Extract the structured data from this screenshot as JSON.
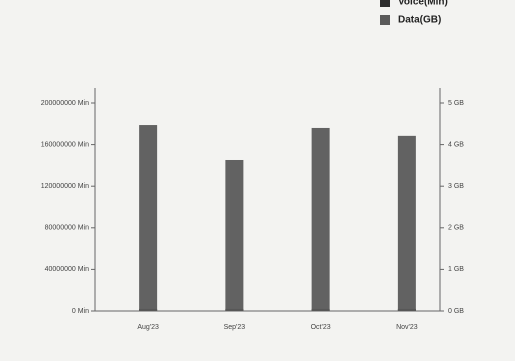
{
  "chart_data": {
    "type": "bar",
    "categories": [
      "Aug'23",
      "Sep'23",
      "Oct'23",
      "Nov'23"
    ],
    "series": [
      {
        "name": "Voice(Min)",
        "color": "#2e2e2e",
        "axis": "y",
        "values": [
          2000000,
          2000000,
          2000000,
          2000000
        ]
      },
      {
        "name": "Data(GB)",
        "color": "#5a5a5a",
        "axis": "y2",
        "values": [
          4.47,
          3.63,
          4.4,
          4.21
        ]
      }
    ],
    "ylim": [
      0,
      200000000
    ],
    "yticks": [
      {
        "value": 0,
        "label": "0 Min"
      },
      {
        "value": 40000000,
        "label": "40000000 Min"
      },
      {
        "value": 80000000,
        "label": "80000000 Min"
      },
      {
        "value": 120000000,
        "label": "120000000 Min"
      },
      {
        "value": 160000000,
        "label": "160000000 Min"
      },
      {
        "value": 200000000,
        "label": "200000000 Min"
      }
    ],
    "y2lim": [
      0,
      5
    ],
    "y2ticks": [
      {
        "value": 0,
        "label": "0 GB"
      },
      {
        "value": 1,
        "label": "1 GB"
      },
      {
        "value": 2,
        "label": "2 GB"
      },
      {
        "value": 3,
        "label": "3 GB"
      },
      {
        "value": 4,
        "label": "4 GB"
      },
      {
        "value": 5,
        "label": "5 GB"
      }
    ]
  }
}
